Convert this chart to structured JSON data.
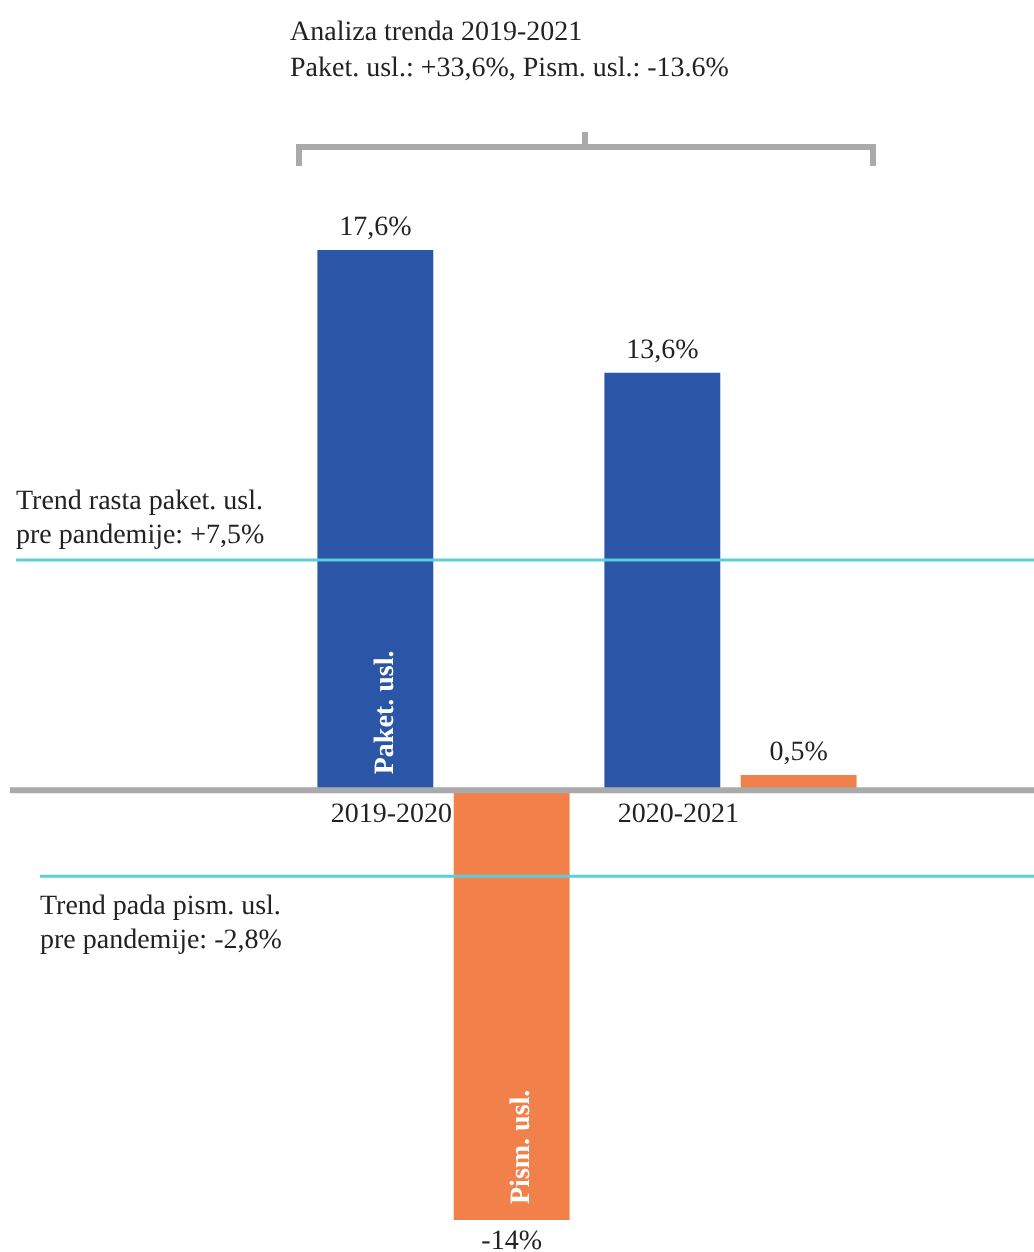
{
  "chart_data": {
    "type": "bar",
    "title": "Analiza trenda 2019-2021",
    "subtitle": "Paket. usl.: +33,6%, Pism. usl.: -13.6%",
    "categories": [
      "2019-2020",
      "2020-2021"
    ],
    "series": [
      {
        "name": "Paket. usl.",
        "color": "#2b56a7",
        "values": [
          17.6,
          13.6
        ],
        "value_labels": [
          "17,6%",
          "13,6%"
        ]
      },
      {
        "name": "Pism. usl.",
        "color": "#f2804a",
        "values": [
          -14,
          0.5
        ],
        "value_labels": [
          "-14%",
          "0,5%"
        ]
      }
    ],
    "ref_lines": [
      {
        "axis": "y",
        "value": 7.5,
        "label": "Trend rasta paket. usl.\npre pandemije: +7,5%",
        "color": "#5ccfdc"
      },
      {
        "axis": "y",
        "value": -2.8,
        "label": "Trend pada pism. usl.\npre pandemije: -2,8%",
        "color": "#5ccfdc"
      }
    ],
    "tick_labels": "x",
    "legend": false
  }
}
